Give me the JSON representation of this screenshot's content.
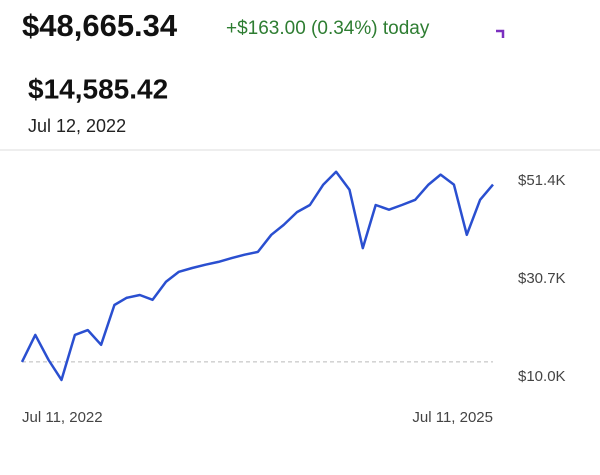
{
  "chart_data": {
    "type": "line",
    "title": "$48,665.34",
    "change": "+$163.00 (0.34%) today",
    "selected_value": "$14,585.42",
    "selected_date": "Jul 12, 2022",
    "x": [
      "2022-07-11",
      "2022-08-11",
      "2022-09-11",
      "2022-10-11",
      "2022-11-11",
      "2022-12-11",
      "2023-01-11",
      "2023-02-11",
      "2023-03-11",
      "2023-04-11",
      "2023-05-11",
      "2023-06-11",
      "2023-07-11",
      "2023-08-11",
      "2023-09-11",
      "2023-10-11",
      "2023-11-11",
      "2023-12-11",
      "2024-01-11",
      "2024-02-11",
      "2024-03-11",
      "2024-04-11",
      "2024-05-11",
      "2024-06-11",
      "2024-07-11",
      "2024-08-11",
      "2024-09-11",
      "2024-10-11",
      "2024-11-11",
      "2024-12-11",
      "2025-01-11",
      "2025-02-11",
      "2025-03-11",
      "2025-04-11",
      "2025-05-11",
      "2025-06-11",
      "2025-07-11"
    ],
    "series": [
      {
        "color": "#2a4fd0",
        "values": [
          13200,
          18900,
          13600,
          9400,
          18900,
          19900,
          16800,
          25200,
          26700,
          27300,
          26300,
          30100,
          32200,
          33000,
          33700,
          34300,
          35100,
          35800,
          36400,
          40000,
          42100,
          44800,
          46300,
          50600,
          53300,
          49500,
          37200,
          46300,
          45300,
          46300,
          47400,
          50600,
          52700,
          50600,
          40000,
          47400,
          50600
        ]
      }
    ],
    "xlim": [
      "2022-07-11",
      "2025-07-11"
    ],
    "xticks": [
      {
        "value": "2022-07-11",
        "label": "Jul 11, 2022"
      },
      {
        "value": "2025-07-11",
        "label": "Jul 11, 2025"
      }
    ],
    "ylim": [
      6000,
      56000
    ],
    "yticks": [
      {
        "value": 10000,
        "label": "$10.0K"
      },
      {
        "value": 30700,
        "label": "$30.7K"
      },
      {
        "value": 51400,
        "label": "$51.4K"
      }
    ]
  }
}
